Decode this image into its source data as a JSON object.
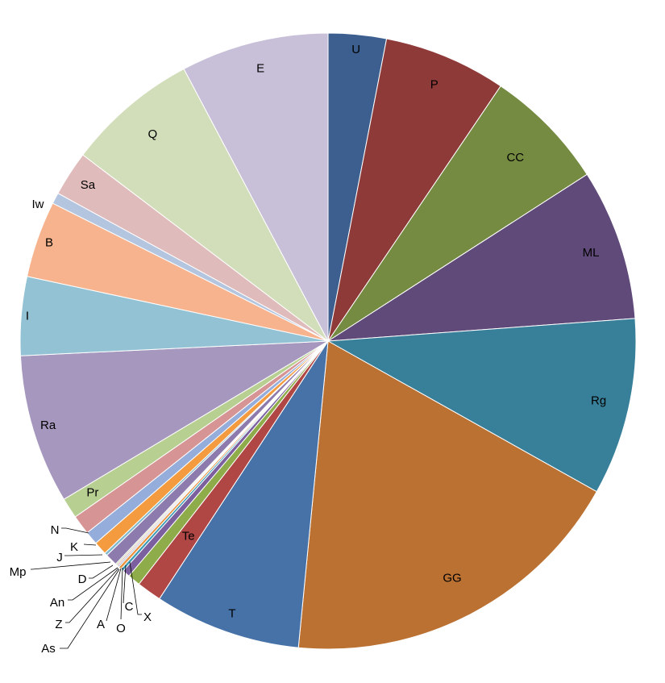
{
  "chart_data": {
    "type": "pie",
    "title": "",
    "start_angle_deg": 0,
    "direction": "clockwise",
    "legend": "none",
    "series": [
      {
        "label": "U",
        "value": 3.23,
        "color": "#3c5f8f"
      },
      {
        "label": "P",
        "value": 6.82,
        "color": "#8e3a39"
      },
      {
        "label": "CC",
        "value": 6.82,
        "color": "#768b42"
      },
      {
        "label": "ML",
        "value": 8.41,
        "color": "#5f4a79"
      },
      {
        "label": "Rg",
        "value": 9.87,
        "color": "#38809a"
      },
      {
        "label": "GG",
        "value": 19.53,
        "color": "#bb7132"
      },
      {
        "label": "T",
        "value": 8.16,
        "color": "#4672a8"
      },
      {
        "label": "Te",
        "value": 1.38,
        "color": "#b04745"
      },
      {
        "label": "X",
        "value": 0.71,
        "color": "#8fac4a"
      },
      {
        "label": "C",
        "value": 0.42,
        "color": "#7b5f9e"
      },
      {
        "label": "O",
        "value": 0.16,
        "color": "#3b9ab5"
      },
      {
        "label": "A",
        "value": 0.16,
        "color": "#e8913f"
      },
      {
        "label": "As",
        "value": 0.08,
        "color": "#9cb1d6"
      },
      {
        "label": "Z",
        "value": 0.08,
        "color": "#d39b9a"
      },
      {
        "label": "An",
        "value": 0.08,
        "color": "#bccf9c"
      },
      {
        "label": "D",
        "value": 0.68,
        "color": "#8e7bad"
      },
      {
        "label": "Mp",
        "value": 0.16,
        "color": "#7fb8cc"
      },
      {
        "label": "J",
        "value": 0.74,
        "color": "#f39b3e"
      },
      {
        "label": "K",
        "value": 0.74,
        "color": "#95addb"
      },
      {
        "label": "N",
        "value": 1.09,
        "color": "#d79495"
      },
      {
        "label": "Pr",
        "value": 1.15,
        "color": "#b8cf92"
      },
      {
        "label": "Ra",
        "value": 8.3,
        "color": "#a597bd"
      },
      {
        "label": "I",
        "value": 4.38,
        "color": "#92c2d4"
      },
      {
        "label": "B",
        "value": 4.26,
        "color": "#f7b38d"
      },
      {
        "label": "Iw",
        "value": 0.62,
        "color": "#b4c5e0"
      },
      {
        "label": "Sa",
        "value": 2.51,
        "color": "#e0bbbb"
      },
      {
        "label": "Q",
        "value": 7.33,
        "color": "#d2deba"
      },
      {
        "label": "E",
        "value": 8.23,
        "color": "#c8bfd8"
      }
    ]
  }
}
